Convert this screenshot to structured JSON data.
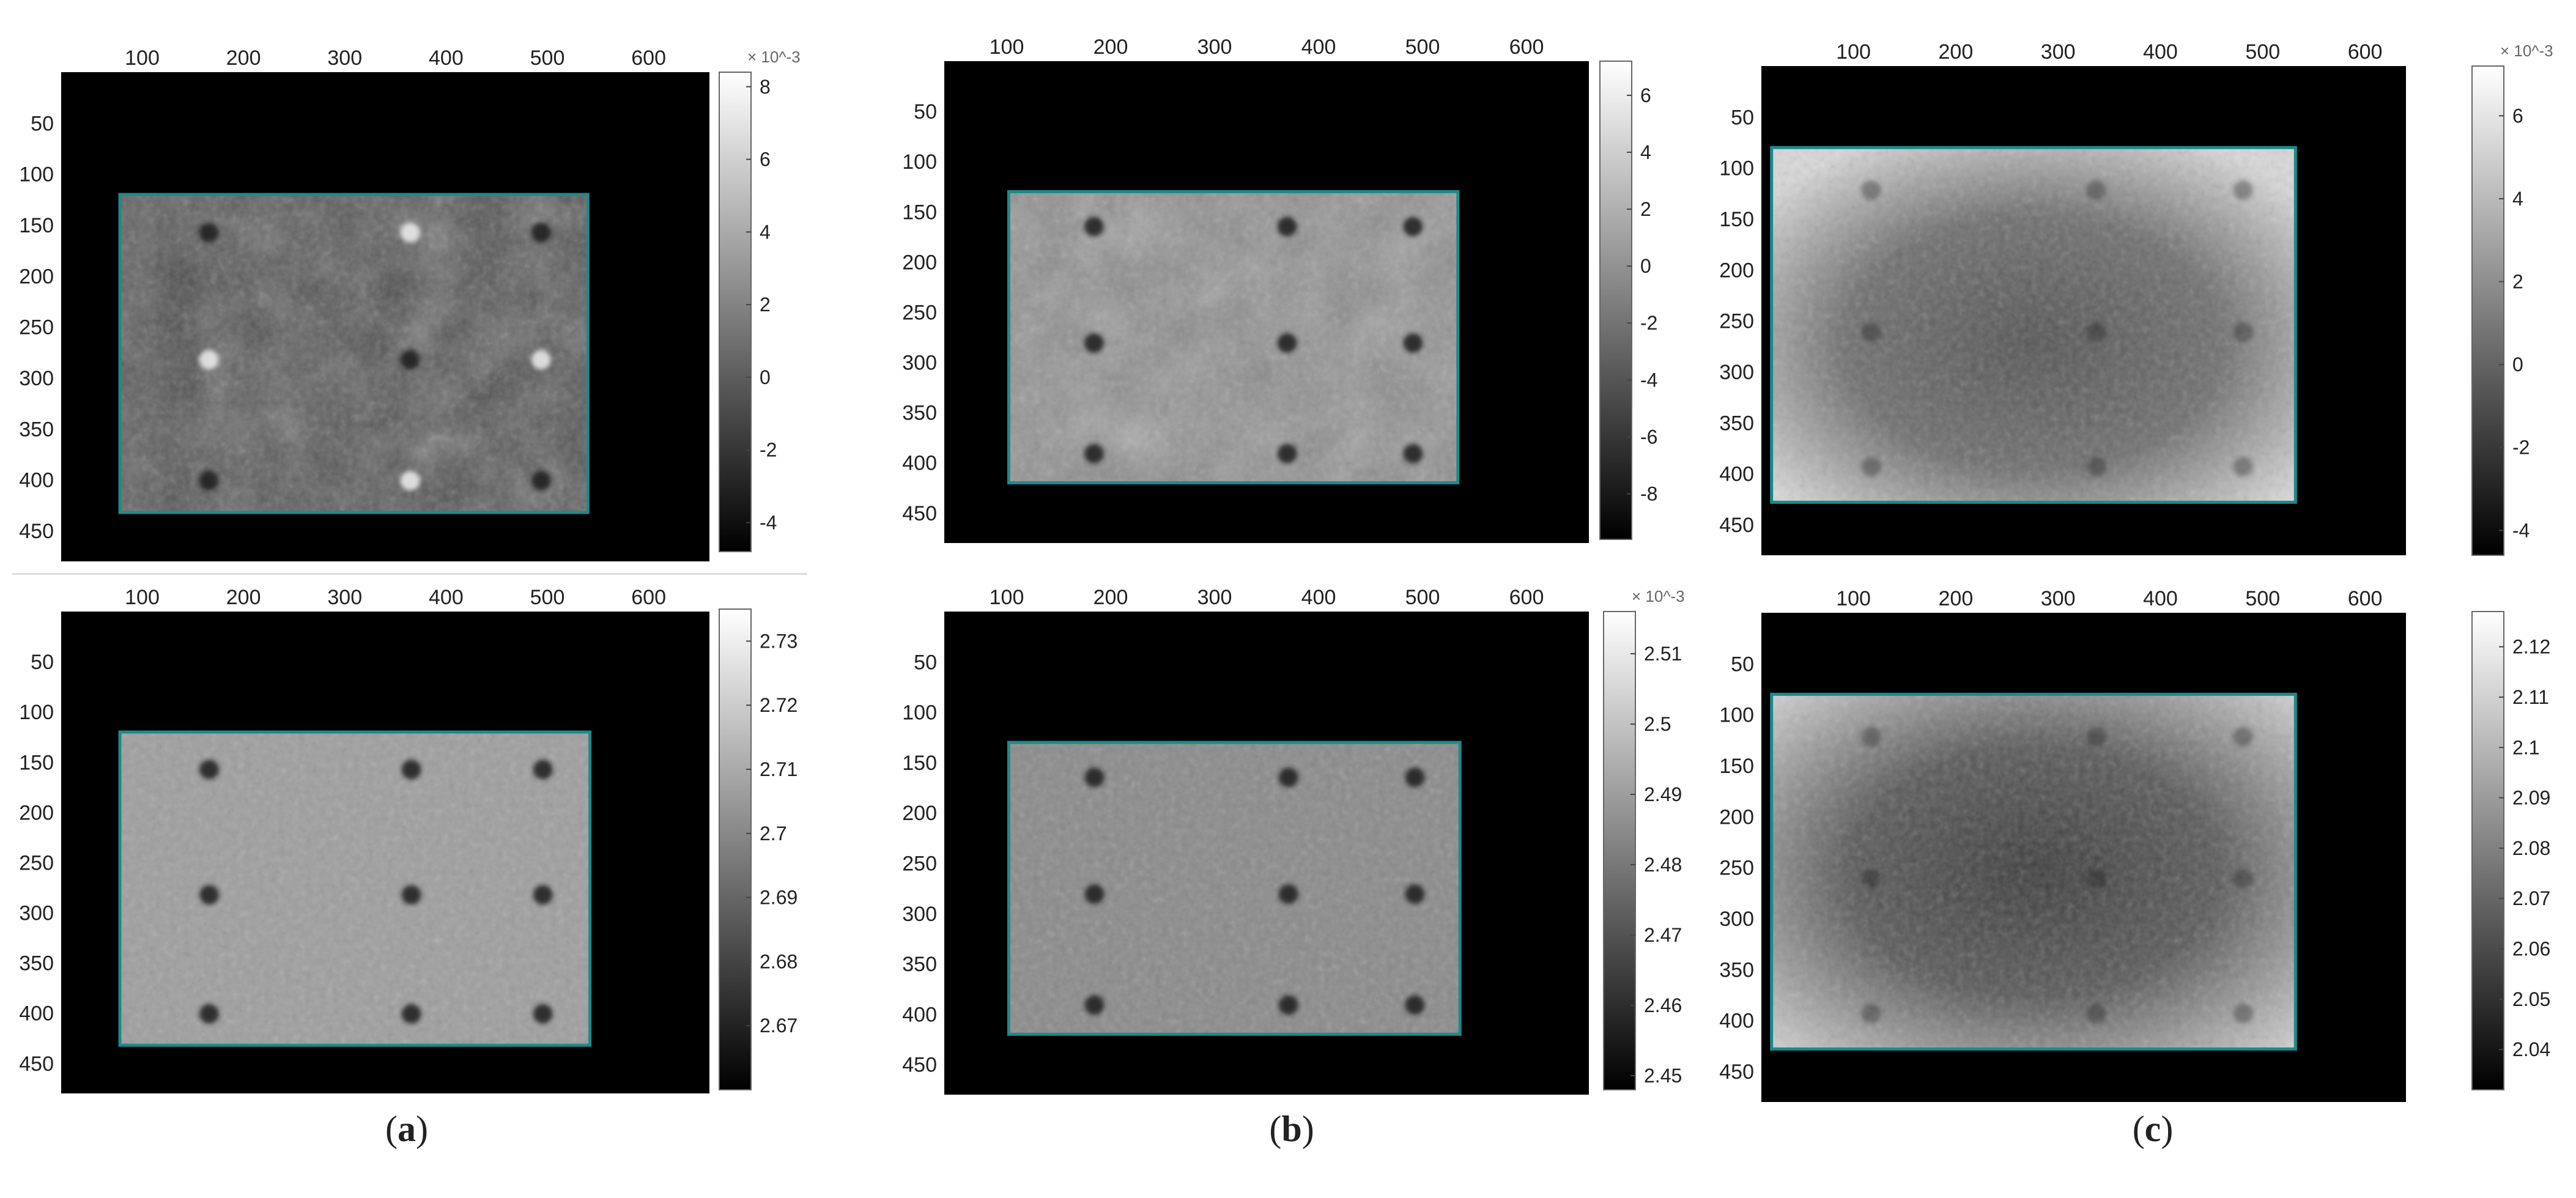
{
  "chart_data": [
    {
      "type": "heatmap",
      "panel": "a",
      "row": "top",
      "x_ticks": [
        100,
        200,
        300,
        400,
        500,
        600
      ],
      "y_ticks": [
        50,
        100,
        150,
        200,
        250,
        300,
        350,
        400,
        450
      ],
      "xlim": [
        20,
        660
      ],
      "ylim": [
        0,
        480
      ],
      "roi_rect": {
        "x": [
          78,
          540
        ],
        "y": [
          120,
          432
        ]
      },
      "colormap": "gray",
      "colorbar": {
        "range": [
          -4.8,
          8.4
        ],
        "ticks": [
          -4,
          -2,
          0,
          2,
          4,
          6,
          8
        ],
        "labels": [
          "-4",
          "-2",
          "0",
          "2",
          "4",
          "6",
          "8"
        ],
        "exponent": "× 10^-3"
      }
    },
    {
      "type": "heatmap",
      "panel": "a",
      "row": "bottom",
      "x_ticks": [
        100,
        200,
        300,
        400,
        500,
        600
      ],
      "y_ticks": [
        50,
        100,
        150,
        200,
        250,
        300,
        350,
        400,
        450
      ],
      "xlim": [
        20,
        660
      ],
      "ylim": [
        0,
        480
      ],
      "roi_rect": {
        "x": [
          78,
          542
        ],
        "y": [
          120,
          432
        ]
      },
      "colormap": "gray",
      "colorbar": {
        "range": [
          2.66,
          2.735
        ],
        "ticks": [
          2.67,
          2.68,
          2.69,
          2.7,
          2.71,
          2.72,
          2.73
        ],
        "labels": [
          "2.67",
          "2.68",
          "2.69",
          "2.7",
          "2.71",
          "2.72",
          "2.73"
        ],
        "exponent": ""
      }
    },
    {
      "type": "heatmap",
      "panel": "b",
      "row": "top",
      "x_ticks": [
        100,
        200,
        300,
        400,
        500,
        600
      ],
      "y_ticks": [
        50,
        100,
        150,
        200,
        250,
        300,
        350,
        400,
        450
      ],
      "xlim": [
        40,
        660
      ],
      "ylim": [
        0,
        480
      ],
      "roi_rect": {
        "x": [
          102,
          534
        ],
        "y": [
          130,
          420
        ]
      },
      "colormap": "gray",
      "colorbar": {
        "range": [
          -9.6,
          7.2
        ],
        "ticks": [
          -8,
          -6,
          -4,
          -2,
          0,
          2,
          4,
          6
        ],
        "labels": [
          "-8",
          "-6",
          "-4",
          "-2",
          "0",
          "2",
          "4",
          "6"
        ],
        "exponent": ""
      }
    },
    {
      "type": "heatmap",
      "panel": "b",
      "row": "bottom",
      "x_ticks": [
        100,
        200,
        300,
        400,
        500,
        600
      ],
      "y_ticks": [
        50,
        100,
        150,
        200,
        250,
        300,
        350,
        400,
        450
      ],
      "xlim": [
        40,
        660
      ],
      "ylim": [
        0,
        480
      ],
      "roi_rect": {
        "x": [
          102,
          536
        ],
        "y": [
          130,
          420
        ]
      },
      "colormap": "gray",
      "colorbar": {
        "range": [
          2.448,
          2.516
        ],
        "ticks": [
          2.45,
          2.46,
          2.47,
          2.48,
          2.49,
          2.5,
          2.51
        ],
        "labels": [
          "2.45",
          "2.46",
          "2.47",
          "2.48",
          "2.49",
          "2.5",
          "2.51"
        ],
        "exponent": "× 10^-3"
      }
    },
    {
      "type": "heatmap",
      "panel": "c",
      "row": "top",
      "x_ticks": [
        100,
        200,
        300,
        400,
        500,
        600
      ],
      "y_ticks": [
        50,
        100,
        150,
        200,
        250,
        300,
        350,
        400,
        450
      ],
      "xlim": [
        10,
        640
      ],
      "ylim": [
        0,
        480
      ],
      "roi_rect": {
        "x": [
          20,
          532
        ],
        "y": [
          80,
          428
        ]
      },
      "colormap": "gray",
      "colorbar": {
        "range": [
          -4.6,
          7.2
        ],
        "ticks": [
          -4,
          -2,
          0,
          2,
          4,
          6
        ],
        "labels": [
          "-4",
          "-2",
          "0",
          "2",
          "4",
          "6"
        ],
        "exponent": "× 10^-3"
      }
    },
    {
      "type": "heatmap",
      "panel": "c",
      "row": "bottom",
      "x_ticks": [
        100,
        200,
        300,
        400,
        500,
        600
      ],
      "y_ticks": [
        50,
        100,
        150,
        200,
        250,
        300,
        350,
        400,
        450
      ],
      "xlim": [
        10,
        640
      ],
      "ylim": [
        0,
        480
      ],
      "roi_rect": {
        "x": [
          20,
          532
        ],
        "y": [
          80,
          428
        ]
      },
      "colormap": "gray",
      "colorbar": {
        "range": [
          2.032,
          2.127
        ],
        "ticks": [
          2.04,
          2.05,
          2.06,
          2.07,
          2.08,
          2.09,
          2.1,
          2.11,
          2.12
        ],
        "labels": [
          "2.04",
          "2.05",
          "2.06",
          "2.07",
          "2.08",
          "2.09",
          "2.1",
          "2.11",
          "2.12"
        ],
        "exponent": ""
      }
    }
  ],
  "captions": [
    {
      "panel": "a",
      "open": "(",
      "letter": "a",
      "close": ")"
    },
    {
      "panel": "b",
      "open": "(",
      "letter": "b",
      "close": ")"
    },
    {
      "panel": "c",
      "open": "(",
      "letter": "c",
      "close": ")"
    }
  ]
}
